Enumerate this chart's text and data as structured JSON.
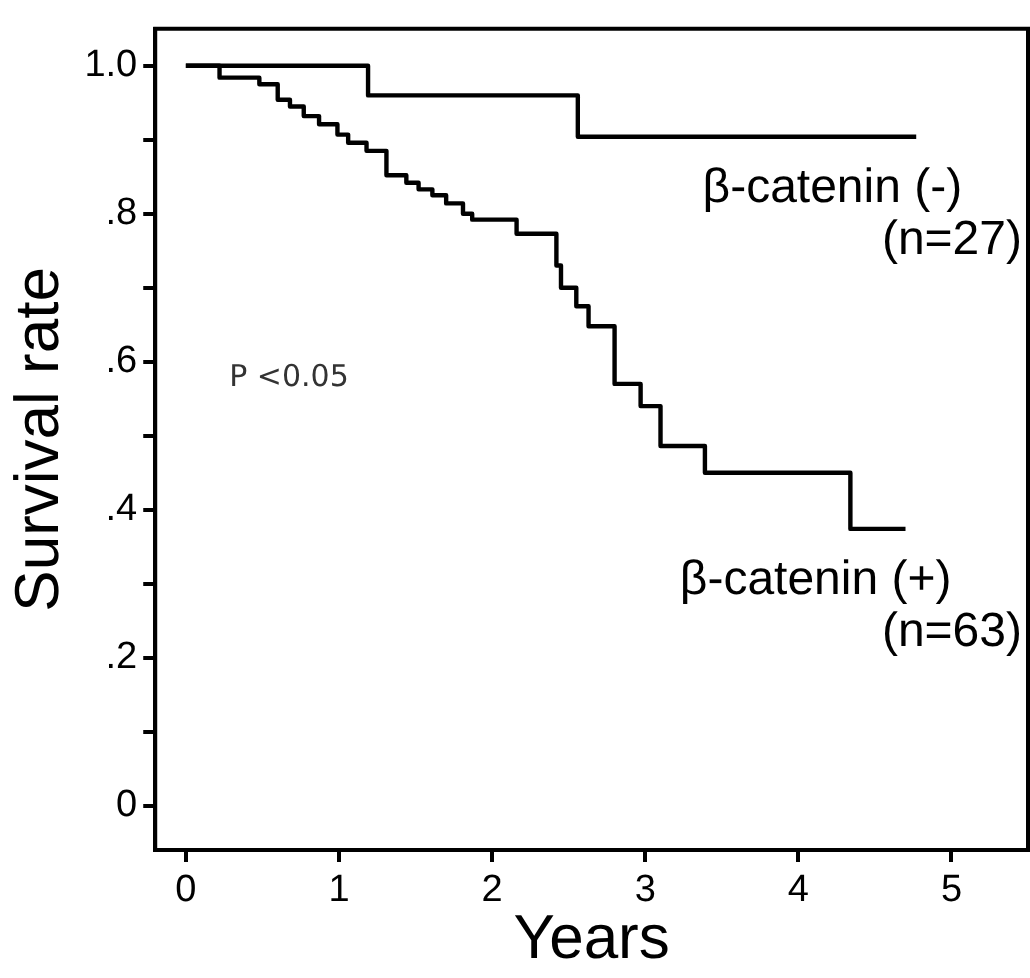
{
  "chart_data": {
    "type": "step",
    "xlabel": "Years",
    "ylabel": "Survival rate",
    "xlim": [
      -0.2,
      5.5
    ],
    "xticks": [
      0,
      1,
      2,
      3,
      4,
      5
    ],
    "ylim": [
      -0.06,
      1.05
    ],
    "yticks": [
      0,
      {
        "value": 0.1,
        "label": null
      },
      {
        "value": 0.2,
        "label": ".2"
      },
      {
        "value": 0.3,
        "label": null
      },
      {
        "value": 0.4,
        "label": ".4"
      },
      {
        "value": 0.5,
        "label": null
      },
      {
        "value": 0.6,
        "label": ".6"
      },
      {
        "value": 0.7,
        "label": null
      },
      {
        "value": 0.8,
        "label": ".8"
      },
      {
        "value": 0.9,
        "label": null
      },
      {
        "value": 1,
        "label": "1.0"
      }
    ],
    "grid": false,
    "legend": false,
    "marker": "none",
    "line_style": "solid",
    "series": [
      {
        "name": "β-catenin (-)",
        "color": "#000000",
        "x": [
          0,
          1.19,
          2.56,
          4.77
        ],
        "values": [
          1,
          0.96,
          0.904,
          0.904
        ]
      },
      {
        "name": "β-catenin (+)",
        "color": "#000000",
        "x": [
          0,
          0.22,
          0.48,
          0.6,
          0.68,
          0.77,
          0.87,
          0.99,
          1.06,
          1.18,
          1.31,
          1.44,
          1.52,
          1.61,
          1.7,
          1.81,
          1.87,
          2.16,
          2.42,
          2.45,
          2.55,
          2.63,
          2.8,
          2.97,
          3.1,
          3.39,
          4.34,
          4.7
        ],
        "values": [
          1,
          0.984,
          0.975,
          0.954,
          0.945,
          0.932,
          0.921,
          0.907,
          0.896,
          0.885,
          0.852,
          0.842,
          0.833,
          0.825,
          0.814,
          0.8,
          0.792,
          0.773,
          0.73,
          0.7,
          0.675,
          0.648,
          0.57,
          0.54,
          0.486,
          0.45,
          0.374,
          0.374
        ]
      }
    ],
    "annotations": [
      "P <0.05",
      "(n=27)",
      "(n=63)"
    ]
  }
}
